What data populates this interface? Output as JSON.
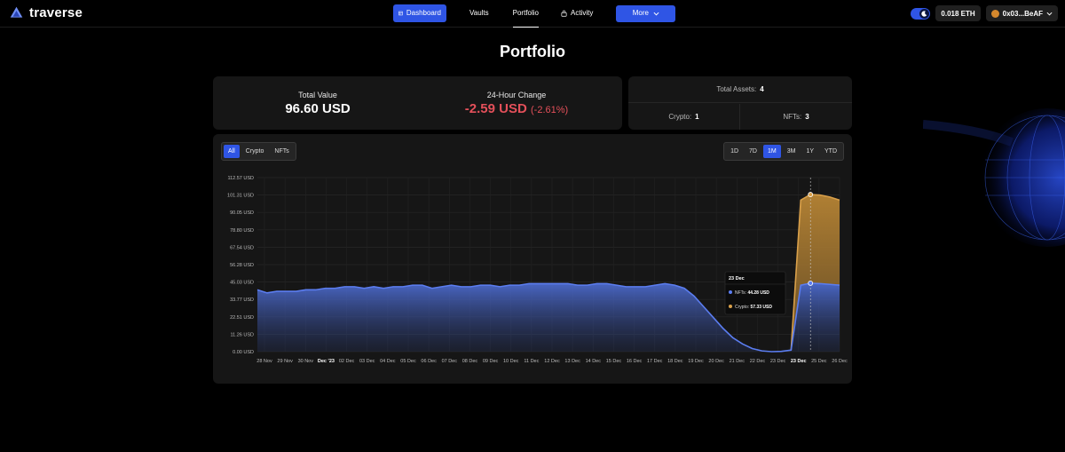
{
  "brand": {
    "name": "traverse"
  },
  "nav": {
    "dashboard": "Dashboard",
    "vaults": "Vaults",
    "portfolio": "Portfolio",
    "activity": "Activity",
    "more": "More"
  },
  "wallet": {
    "balance": "0.018 ETH",
    "address": "0x03...BeAF"
  },
  "page": {
    "title": "Portfolio"
  },
  "summary": {
    "total_label": "Total Value",
    "total_value": "96.60 USD",
    "change_label": "24-Hour Change",
    "change_value": "-2.59 USD",
    "change_pct": "(-2.61%)"
  },
  "assets": {
    "total_label": "Total Assets:",
    "total_count": "4",
    "crypto_label": "Crypto:",
    "crypto_count": "1",
    "nfts_label": "NFTs:",
    "nfts_count": "3"
  },
  "filters": [
    "All",
    "Crypto",
    "NFTs"
  ],
  "active_filter": "All",
  "ranges": [
    "1D",
    "7D",
    "1M",
    "3M",
    "1Y",
    "YTD"
  ],
  "active_range": "1M",
  "colors": {
    "accent": "#2f55e5",
    "nfts": "#4f6fd6",
    "crypto": "#b88535",
    "negative": "#e4505a"
  },
  "chart_data": {
    "type": "area",
    "stacked": true,
    "y_ticks": [
      "0.00 USD",
      "11.26 USD",
      "22.51 USD",
      "33.77 USD",
      "45.03 USD",
      "56.28 USD",
      "67.54 USD",
      "78.80 USD",
      "90.05 USD",
      "101.31 USD",
      "112.57 USD"
    ],
    "ylim": [
      0,
      112.57
    ],
    "x_ticks": [
      "28 Nov",
      "29 Nov",
      "30 Nov",
      "Dec '23",
      "02 Dec",
      "03 Dec",
      "04 Dec",
      "05 Dec",
      "06 Dec",
      "07 Dec",
      "08 Dec",
      "09 Dec",
      "10 Dec",
      "11 Dec",
      "12 Dec",
      "13 Dec",
      "14 Dec",
      "15 Dec",
      "16 Dec",
      "17 Dec",
      "18 Dec",
      "19 Dec",
      "20 Dec",
      "21 Dec",
      "22 Dec",
      "23 Dec",
      "23 Dec",
      "25 Dec",
      "26 Dec"
    ],
    "bold_ticks": [
      3,
      26
    ],
    "series": [
      {
        "name": "NFTs",
        "values": [
          40,
          38,
          39,
          39,
          39,
          40,
          40,
          41,
          41,
          42,
          42,
          41,
          42,
          41,
          42,
          42,
          43,
          43,
          41,
          42,
          43,
          42,
          42,
          43,
          43,
          42,
          43,
          43,
          44,
          44,
          44,
          44,
          44,
          43,
          43,
          44,
          44,
          43,
          42,
          42,
          42,
          43,
          44,
          43,
          41,
          36,
          29,
          22,
          15,
          9,
          5,
          2,
          0.5,
          0,
          0.2,
          1,
          43,
          44.28,
          44,
          43.5,
          43
        ]
      },
      {
        "name": "Crypto",
        "values": [
          0,
          0,
          0,
          0,
          0,
          0,
          0,
          0,
          0,
          0,
          0,
          0,
          0,
          0,
          0,
          0,
          0,
          0,
          0,
          0,
          0,
          0,
          0,
          0,
          0,
          0,
          0,
          0,
          0,
          0,
          0,
          0,
          0,
          0,
          0,
          0,
          0,
          0,
          0,
          0,
          0,
          0,
          0,
          0,
          0,
          0,
          0,
          0,
          0,
          0,
          0,
          0,
          0,
          0,
          0,
          0,
          55,
          57.33,
          57.3,
          56.5,
          55
        ]
      }
    ],
    "tooltip": {
      "date": "23 Dec",
      "nfts_label": "NFTs:",
      "nfts_value": "44.28 USD",
      "crypto_label": "Crypto:",
      "crypto_value": "57.33 USD",
      "index": 57
    }
  }
}
